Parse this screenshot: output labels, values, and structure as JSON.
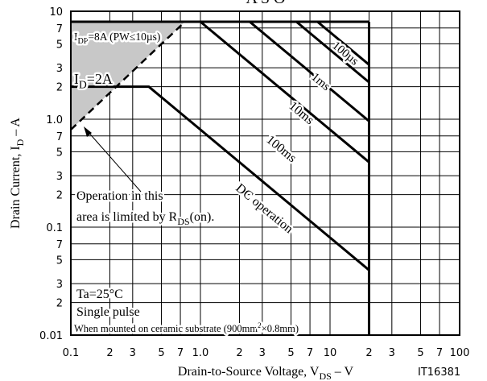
{
  "chart_data": {
    "type": "line",
    "title": "A S O",
    "log_x": true,
    "log_y": true,
    "grid": true,
    "color": "#000000",
    "xlim": [
      0.1,
      100
    ],
    "ylim": [
      0.01,
      10
    ],
    "xticks": [
      0.1,
      {
        "value": 0.2,
        "label": "2"
      },
      {
        "value": 0.3,
        "label": "3"
      },
      {
        "value": 0.5,
        "label": "5"
      },
      {
        "value": 0.7,
        "label": "7"
      },
      {
        "value": 1,
        "label": "1.0"
      },
      {
        "value": 2,
        "label": "2"
      },
      {
        "value": 3,
        "label": "3"
      },
      {
        "value": 5,
        "label": "5"
      },
      {
        "value": 7,
        "label": "7"
      },
      10,
      {
        "value": 20,
        "label": "2"
      },
      {
        "value": 30,
        "label": "3"
      },
      {
        "value": 50,
        "label": "5"
      },
      {
        "value": 70,
        "label": "7"
      },
      100
    ],
    "yticks": [
      0.01,
      {
        "value": 0.02,
        "label": "2"
      },
      {
        "value": 0.03,
        "label": "3"
      },
      {
        "value": 0.05,
        "label": "5"
      },
      {
        "value": 0.07,
        "label": "7"
      },
      0.1,
      {
        "value": 0.2,
        "label": "2"
      },
      {
        "value": 0.3,
        "label": "3"
      },
      {
        "value": 0.5,
        "label": "5"
      },
      {
        "value": 0.7,
        "label": "7"
      },
      {
        "value": 1,
        "label": "1.0"
      },
      2,
      3,
      5,
      7,
      10
    ],
    "x_label": [
      {
        "text": "Drain-to-Source Voltage, V"
      },
      {
        "text": "DS",
        "sub": true
      },
      {
        "text": " – V"
      }
    ],
    "y_label": [
      {
        "text": "Drain Current, I"
      },
      {
        "text": "D",
        "sub": true
      },
      {
        "text": " – A"
      }
    ],
    "series": [
      {
        "x": [
          0.1,
          20
        ],
        "y": [
          8,
          8
        ]
      },
      {
        "x": [
          20,
          20
        ],
        "y": [
          0.01,
          8
        ]
      },
      {
        "x": [
          0.1,
          0.76
        ],
        "y": [
          0.8,
          8
        ],
        "dashed": true
      },
      {
        "name": "DC operation",
        "x": [
          0.1,
          0.4,
          20
        ],
        "y": [
          2,
          2,
          0.04
        ]
      },
      {
        "name": "100ms",
        "x": [
          1,
          20
        ],
        "y": [
          8,
          0.4
        ]
      },
      {
        "name": "10ms",
        "x": [
          2.4,
          20
        ],
        "y": [
          8,
          0.96
        ]
      },
      {
        "name": "1ms",
        "x": [
          5.5,
          20
        ],
        "y": [
          8,
          2.2
        ]
      },
      {
        "name": "100µs",
        "x": [
          8,
          20
        ],
        "y": [
          8,
          3.2
        ]
      }
    ],
    "annotations": [
      [
        {
          "text": "I"
        },
        {
          "text": "DP",
          "sub": true
        },
        {
          "text": "=8A (PW≤10µs)"
        }
      ],
      [
        {
          "text": "I"
        },
        {
          "text": "D",
          "sub": true
        },
        {
          "text": "=2A"
        }
      ],
      [
        {
          "text": "Operation in this"
        }
      ],
      [
        {
          "text": "area is limited by R"
        },
        {
          "text": "DS",
          "sub": true
        },
        {
          "text": "(on)."
        }
      ],
      [
        {
          "text": "Ta=25°C"
        }
      ],
      [
        {
          "text": "Single pulse"
        }
      ],
      [
        {
          "text": "When mounted on ceramic substrate (900mm"
        },
        {
          "text": "2",
          "sup": true
        },
        {
          "text": "×0.8mm)"
        }
      ],
      [
        {
          "text": "IT16381"
        }
      ]
    ]
  }
}
